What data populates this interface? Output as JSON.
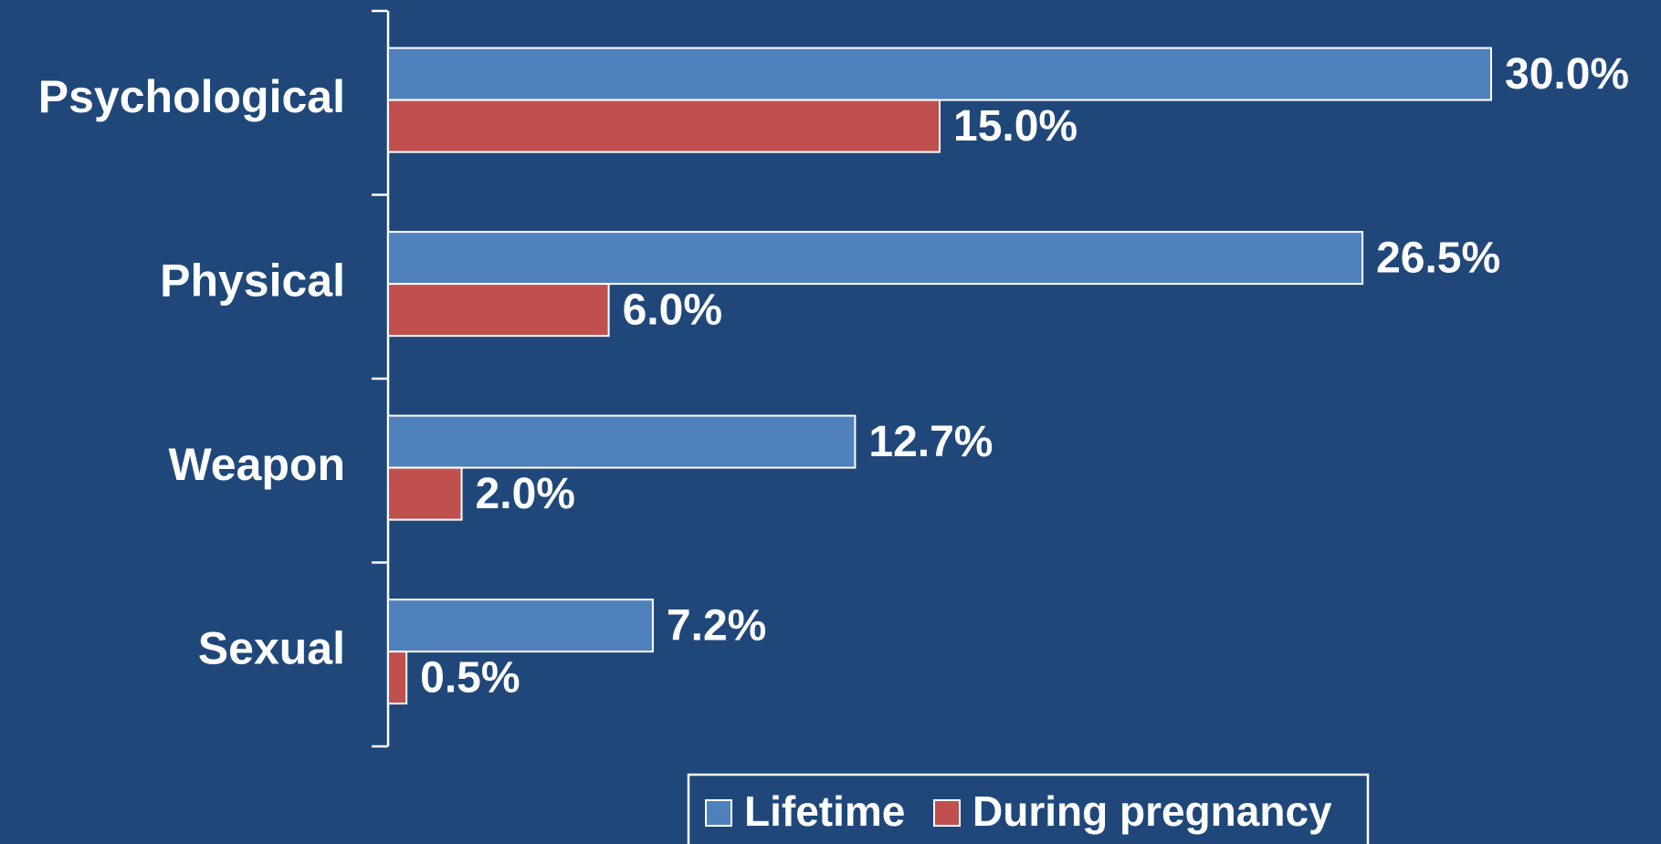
{
  "chart_data": {
    "type": "bar",
    "orientation": "horizontal",
    "categories": [
      "Psychological",
      "Physical",
      "Weapon",
      "Sexual"
    ],
    "series": [
      {
        "name": "Lifetime",
        "color": "#4f81bd",
        "values": [
          30.0,
          26.5,
          12.7,
          7.2
        ],
        "value_labels": [
          "30.0%",
          "26.5%",
          "12.7%",
          "7.2%"
        ]
      },
      {
        "name": "During pregnancy",
        "color": "#c0504d",
        "values": [
          15.0,
          6.0,
          2.0,
          0.5
        ],
        "value_labels": [
          "15.0%",
          "6.0%",
          "2.0%",
          "0.5%"
        ]
      }
    ],
    "legend": "bottom"
  }
}
